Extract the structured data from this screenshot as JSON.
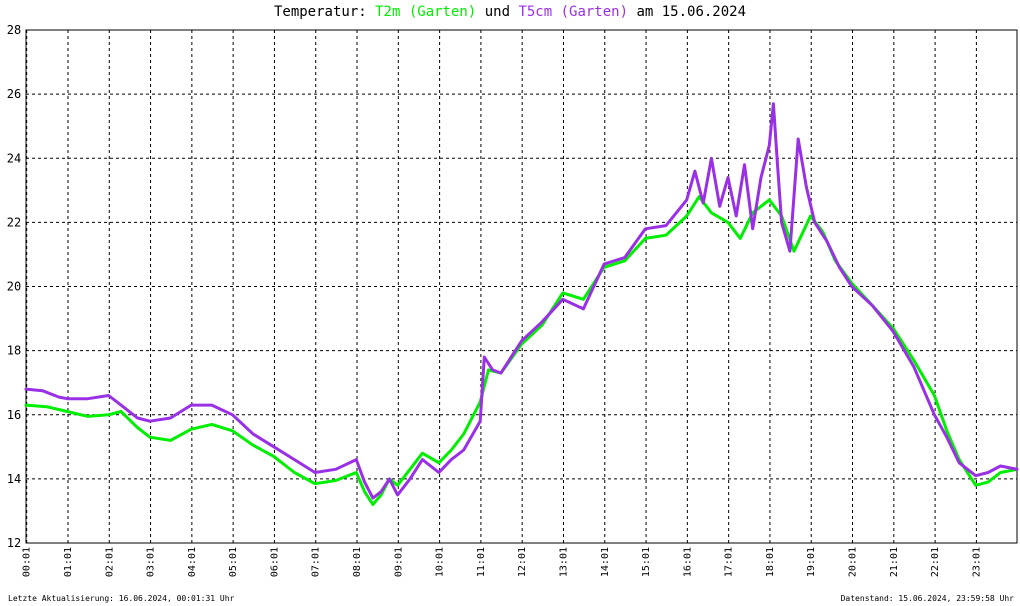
{
  "chart_data": {
    "type": "line",
    "title": {
      "prefix": "Temperatur: ",
      "series1_label": "T2m (Garten)",
      "joiner": " und ",
      "series2_label": "T5cm (Garten)",
      "suffix": " am 15.06.2024"
    },
    "x_tick_labels": [
      "00:01",
      "01:01",
      "02:01",
      "03:01",
      "04:01",
      "05:01",
      "06:01",
      "07:01",
      "08:01",
      "09:01",
      "10:01",
      "11:01",
      "12:01",
      "13:01",
      "14:01",
      "15:01",
      "16:01",
      "17:01",
      "18:01",
      "19:01",
      "20:01",
      "21:01",
      "22:01",
      "23:01"
    ],
    "y_tick_labels": [
      "12",
      "14",
      "16",
      "18",
      "20",
      "22",
      "24",
      "26",
      "28"
    ],
    "ylim": [
      12,
      28
    ],
    "xlim_hours": [
      0,
      24
    ],
    "grid": true,
    "series": [
      {
        "name": "T2m (Garten)",
        "color": "#00ee00",
        "x": [
          0,
          0.5,
          1,
          1.5,
          2,
          2.3,
          2.7,
          3,
          3.5,
          4,
          4.5,
          5,
          5.5,
          6,
          6.5,
          7,
          7.5,
          8,
          8.2,
          8.4,
          8.6,
          8.8,
          9,
          9.3,
          9.6,
          10,
          10.3,
          10.6,
          11,
          11.2,
          11.5,
          12,
          12.5,
          13,
          13.5,
          14,
          14.5,
          15,
          15.5,
          16,
          16.3,
          16.6,
          17,
          17.3,
          17.6,
          18,
          18.3,
          18.6,
          19,
          19.3,
          19.6,
          20,
          20.5,
          21,
          21.5,
          22,
          22.3,
          22.6,
          23,
          23.3,
          23.6,
          24
        ],
        "y": [
          16.3,
          16.25,
          16.1,
          15.95,
          16.0,
          16.1,
          15.6,
          15.3,
          15.2,
          15.55,
          15.7,
          15.5,
          15.05,
          14.7,
          14.2,
          13.85,
          13.95,
          14.2,
          13.6,
          13.2,
          13.5,
          14.0,
          13.8,
          14.3,
          14.8,
          14.5,
          14.9,
          15.4,
          16.4,
          17.4,
          17.3,
          18.2,
          18.8,
          19.8,
          19.6,
          20.6,
          20.8,
          21.5,
          21.6,
          22.2,
          22.8,
          22.3,
          22.0,
          21.5,
          22.3,
          22.7,
          22.2,
          21.1,
          22.2,
          21.7,
          20.8,
          20.1,
          19.4,
          18.7,
          17.7,
          16.6,
          15.5,
          14.6,
          13.8,
          13.9,
          14.2,
          14.3
        ]
      },
      {
        "name": "T5cm (Garten)",
        "color": "#9a30e6",
        "x": [
          0,
          0.4,
          0.8,
          1,
          1.5,
          2,
          2.3,
          2.7,
          3,
          3.5,
          4,
          4.5,
          5,
          5.5,
          6,
          6.5,
          7,
          7.5,
          8,
          8.2,
          8.4,
          8.6,
          8.8,
          9,
          9.3,
          9.6,
          10,
          10.3,
          10.6,
          11,
          11.1,
          11.3,
          11.5,
          12,
          12.5,
          13,
          13.5,
          14,
          14.5,
          15,
          15.5,
          16,
          16.2,
          16.4,
          16.6,
          16.8,
          17,
          17.2,
          17.4,
          17.6,
          17.8,
          18,
          18.1,
          18.2,
          18.3,
          18.5,
          18.7,
          18.9,
          19.1,
          19.4,
          19.7,
          20,
          20.5,
          21,
          21.5,
          22,
          22.3,
          22.6,
          23,
          23.3,
          23.6,
          24
        ],
        "y": [
          16.8,
          16.75,
          16.55,
          16.5,
          16.5,
          16.6,
          16.3,
          15.9,
          15.8,
          15.9,
          16.3,
          16.3,
          16.0,
          15.4,
          15.0,
          14.6,
          14.2,
          14.3,
          14.6,
          13.9,
          13.4,
          13.6,
          14.0,
          13.5,
          14.0,
          14.6,
          14.2,
          14.6,
          14.9,
          15.8,
          17.8,
          17.4,
          17.3,
          18.3,
          18.9,
          19.6,
          19.3,
          20.7,
          20.9,
          21.8,
          21.9,
          22.7,
          23.6,
          22.6,
          24.0,
          22.5,
          23.4,
          22.2,
          23.8,
          21.8,
          23.4,
          24.4,
          25.7,
          23.8,
          22.0,
          21.1,
          24.6,
          23.1,
          22.0,
          21.4,
          20.6,
          20.0,
          19.4,
          18.6,
          17.5,
          16.0,
          15.3,
          14.5,
          14.1,
          14.2,
          14.4,
          14.3
        ]
      }
    ]
  },
  "footer": {
    "left": "Letzte Aktualisierung: 16.06.2024, 00:01:31 Uhr",
    "right": "Datenstand: 15.06.2024, 23:59:58 Uhr"
  }
}
